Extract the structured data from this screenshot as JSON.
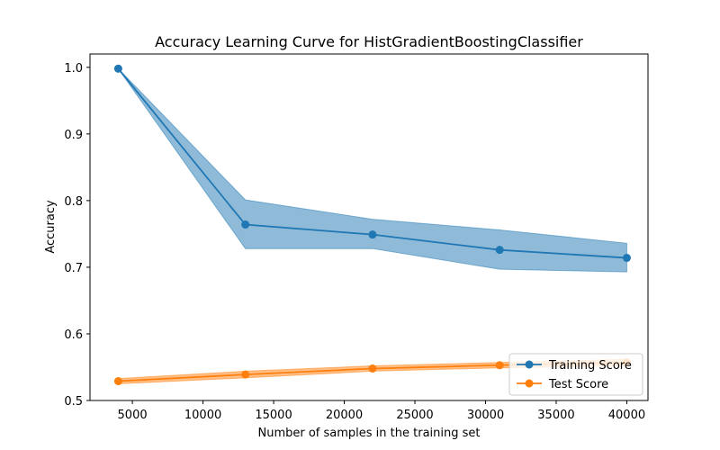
{
  "chart_data": {
    "type": "line",
    "title": "Accuracy Learning Curve for HistGradientBoostingClassifier",
    "xlabel": "Number of samples in the training set",
    "ylabel": "Accuracy",
    "xlim": [
      2000,
      41500
    ],
    "ylim": [
      0.5,
      1.02
    ],
    "xticks": [
      5000,
      10000,
      15000,
      20000,
      25000,
      30000,
      35000,
      40000
    ],
    "xtick_labels": [
      "5000",
      "10000",
      "15000",
      "20000",
      "25000",
      "30000",
      "35000",
      "40000"
    ],
    "yticks": [
      0.5,
      0.6,
      0.7,
      0.8,
      0.9,
      1.0
    ],
    "ytick_labels": [
      "0.5",
      "0.6",
      "0.7",
      "0.8",
      "0.9",
      "1.0"
    ],
    "grid": false,
    "legend_position": "lower-right",
    "x": [
      4000,
      13000,
      22000,
      31000,
      40000
    ],
    "series": [
      {
        "name": "Training Score",
        "color": "#1f77b4",
        "values": [
          0.998,
          0.764,
          0.749,
          0.726,
          0.714
        ],
        "band_lower": [
          0.998,
          0.728,
          0.728,
          0.697,
          0.693
        ],
        "band_upper": [
          0.998,
          0.801,
          0.772,
          0.756,
          0.736
        ]
      },
      {
        "name": "Test Score",
        "color": "#ff7f0e",
        "values": [
          0.529,
          0.539,
          0.548,
          0.553,
          0.557
        ],
        "band_lower": [
          0.525,
          0.534,
          0.544,
          0.549,
          0.552
        ],
        "band_upper": [
          0.533,
          0.544,
          0.552,
          0.557,
          0.562
        ]
      }
    ]
  }
}
